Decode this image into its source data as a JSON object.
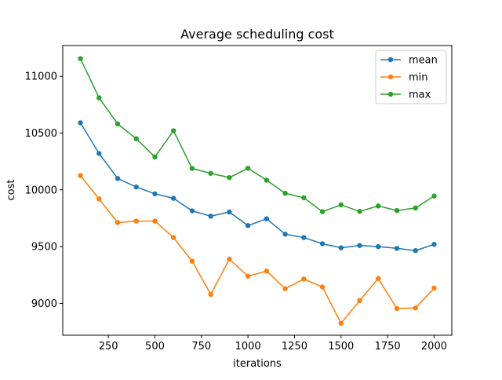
{
  "chart_data": {
    "type": "line",
    "title": "Average scheduling cost",
    "xlabel": "iterations",
    "ylabel": "cost",
    "xlim": [
      5,
      2095
    ],
    "ylim": [
      8720,
      11270
    ],
    "xticks": [
      250,
      500,
      750,
      1000,
      1250,
      1500,
      1750,
      2000
    ],
    "yticks": [
      9000,
      9500,
      10000,
      10500,
      11000
    ],
    "grid": false,
    "legend_position": "top-right",
    "x": [
      100,
      200,
      300,
      400,
      500,
      600,
      700,
      800,
      900,
      1000,
      1100,
      1200,
      1300,
      1400,
      1500,
      1600,
      1700,
      1800,
      1900,
      2000
    ],
    "series": [
      {
        "name": "mean",
        "color": "#1f77b4",
        "values": [
          10590,
          10320,
          10100,
          10025,
          9965,
          9925,
          9815,
          9768,
          9805,
          9685,
          9745,
          9610,
          9580,
          9525,
          9490,
          9510,
          9500,
          9485,
          9465,
          9520
        ]
      },
      {
        "name": "min",
        "color": "#ff7f0e",
        "values": [
          10125,
          9920,
          9712,
          9725,
          9725,
          9580,
          9372,
          9080,
          9390,
          9240,
          9285,
          9130,
          9215,
          9145,
          8825,
          9025,
          9220,
          8955,
          8960,
          9135
        ]
      },
      {
        "name": "max",
        "color": "#2ca02c",
        "values": [
          11155,
          10810,
          10580,
          10450,
          10290,
          10520,
          10188,
          10145,
          10108,
          10190,
          10085,
          9970,
          9930,
          9808,
          9868,
          9810,
          9858,
          9818,
          9840,
          9945
        ]
      }
    ]
  }
}
